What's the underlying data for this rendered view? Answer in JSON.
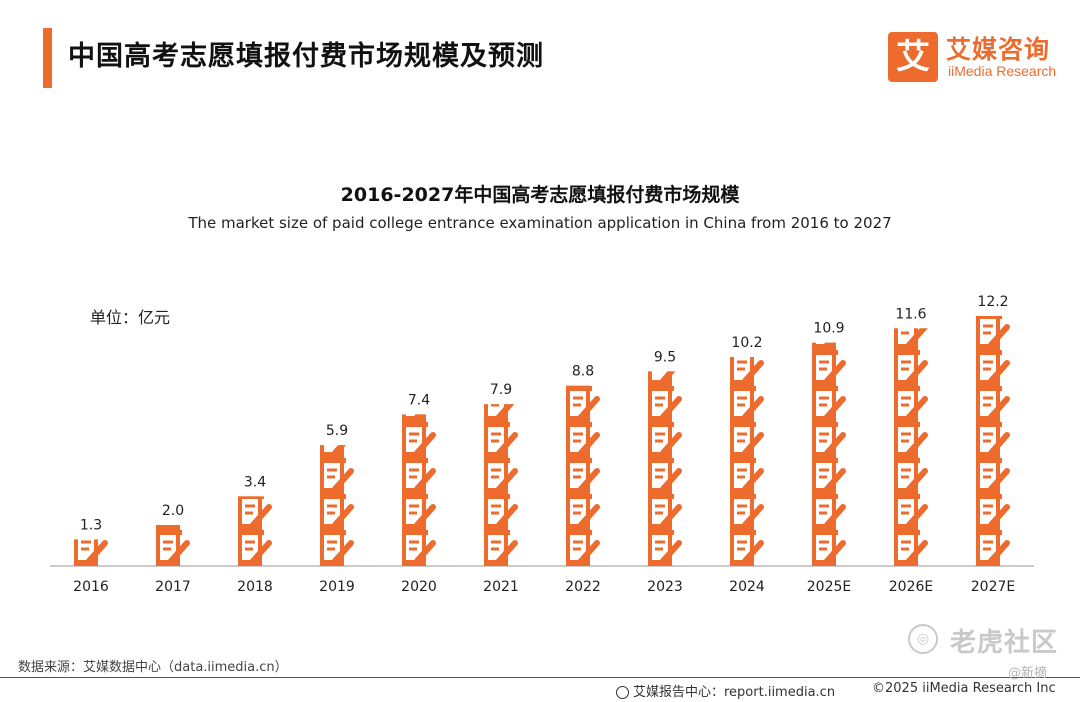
{
  "header": {
    "page_title": "中国高考志愿填报付费市场规模及预测",
    "logo_mark": "艾",
    "logo_cn": "艾媒咨询",
    "logo_en": "iiMedia Research"
  },
  "chart_data": {
    "type": "bar",
    "title": "2016-2027年中国高考志愿填报付费市场规模",
    "subtitle": "The market size of paid college entrance examination application in China from 2016 to 2027",
    "unit_label": "单位：亿元",
    "categories": [
      "2016",
      "2017",
      "2018",
      "2019",
      "2020",
      "2021",
      "2022",
      "2023",
      "2024",
      "2025E",
      "2026E",
      "2027E"
    ],
    "values": [
      1.3,
      2.0,
      3.4,
      5.9,
      7.4,
      7.9,
      8.8,
      9.5,
      10.2,
      10.9,
      11.6,
      12.2
    ],
    "value_labels": [
      "1.3",
      "2.0",
      "3.4",
      "5.9",
      "7.4",
      "7.9",
      "8.8",
      "9.5",
      "10.2",
      "10.9",
      "11.6",
      "12.2"
    ],
    "ylim": [
      0,
      12.2
    ],
    "bar_style": "stacked pictogram icons (document with pen)",
    "bar_color": "#ec6b2d",
    "grid": false
  },
  "footer": {
    "source": "数据来源：艾媒数据中心（data.iimedia.cn）",
    "report_center": "艾媒报告中心：report.iimedia.cn",
    "copyright": "©2025  iiMedia Research  Inc"
  },
  "watermark": {
    "text": "老虎社区",
    "sub": "@新摘"
  },
  "colors": {
    "accent": "#ec6b2d",
    "axis": "#999999",
    "text": "#222222"
  }
}
